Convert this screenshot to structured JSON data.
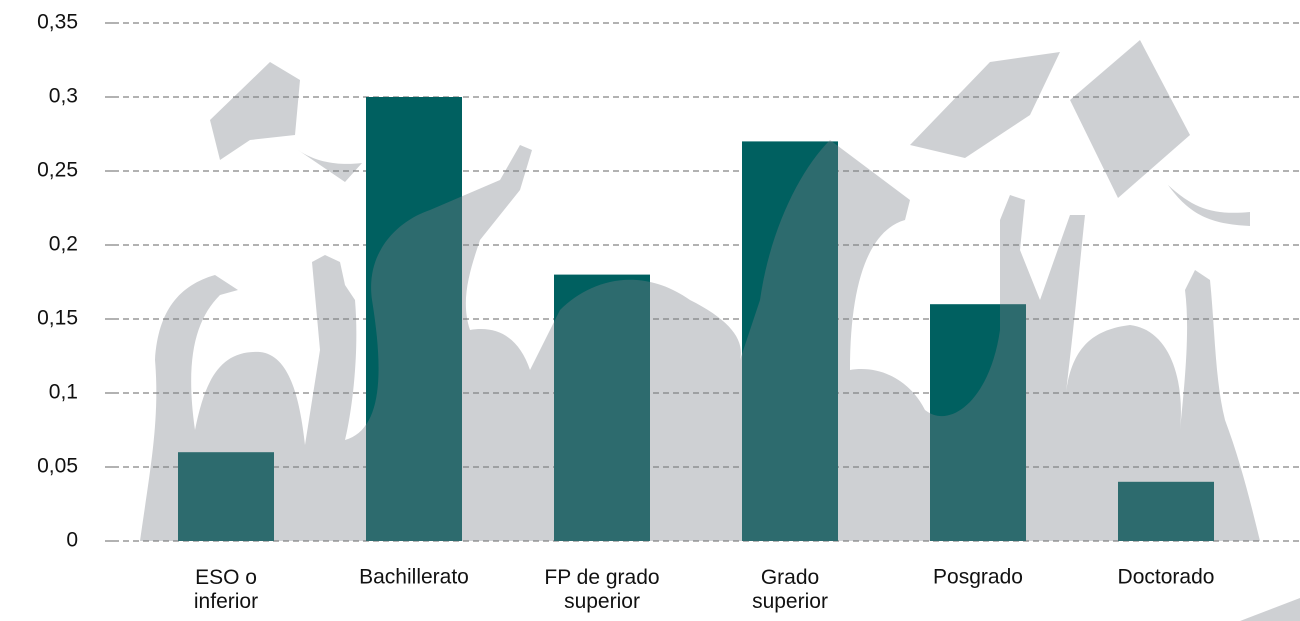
{
  "chart_data": {
    "type": "bar",
    "categories": [
      "ESO o\ninferior",
      "Bachillerato",
      "FP de grado\nsuperior",
      "Grado\nsuperior",
      "Posgrado",
      "Doctorado"
    ],
    "values": [
      0.06,
      0.3,
      0.18,
      0.27,
      0.16,
      0.04
    ],
    "color": "#006060",
    "ylim": [
      0,
      0.35
    ],
    "yticks": [
      0,
      {
        "value": 0.05,
        "label": "0,05"
      },
      {
        "value": 0.1,
        "label": "0,1"
      },
      {
        "value": 0.15,
        "label": "0,15"
      },
      {
        "value": 0.2,
        "label": "0,2"
      },
      {
        "value": 0.25,
        "label": "0,25"
      },
      {
        "value": 0.3,
        "label": "0,3"
      },
      {
        "value": 0.35,
        "label": "0,35"
      }
    ],
    "grid": true
  }
}
